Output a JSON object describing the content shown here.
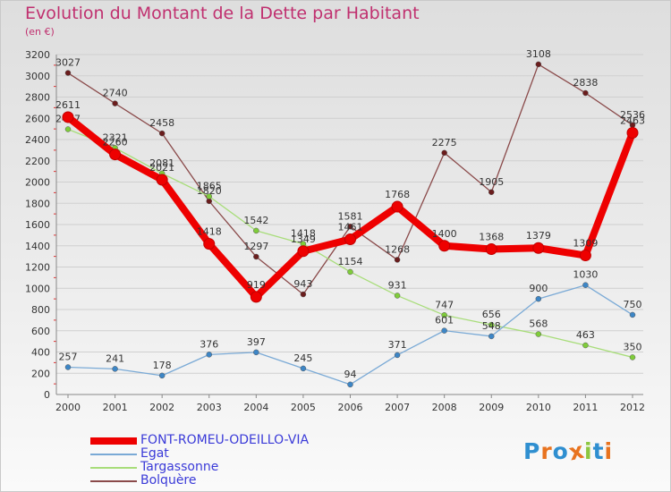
{
  "page": {
    "title": "Evolution du Montant de la Dette par Habitant",
    "subtitle": "(en €)",
    "logo_letters": [
      "P",
      "r",
      "o",
      "x",
      "i",
      "t",
      "i"
    ],
    "logo_colors": [
      "#2f8fd0",
      "#e8731f",
      "#2f8fd0",
      "#e8731f",
      "#8cc63f",
      "#2f8fd0",
      "#e8731f"
    ]
  },
  "chart_data": {
    "type": "line",
    "title": "Evolution du Montant de la Dette par Habitant",
    "subtitle": "(en €)",
    "xlabel": "",
    "ylabel": "",
    "x": [
      "2000",
      "2001",
      "2002",
      "2003",
      "2004",
      "2005",
      "2006",
      "2007",
      "2008",
      "2009",
      "2010",
      "2011",
      "2012"
    ],
    "ylim": [
      0,
      3200
    ],
    "yticks": [
      0,
      200,
      400,
      600,
      800,
      1000,
      1200,
      1400,
      1600,
      1800,
      2000,
      2200,
      2400,
      2600,
      2800,
      3000,
      3200
    ],
    "grid": "horizontal",
    "legend_position": "bottom-left",
    "series": [
      {
        "name": "FONT-ROMEU-ODEILLO-VIA",
        "color": "#ee0000",
        "marker_color": "#ee0000",
        "values": [
          2611,
          2260,
          2021,
          1418,
          919,
          1349,
          1461,
          1768,
          1400,
          1368,
          1379,
          1309,
          2463
        ]
      },
      {
        "name": "Egat",
        "color": "#7aaad6",
        "marker_color": "#3d86c6",
        "values": [
          257,
          241,
          178,
          376,
          397,
          245,
          94,
          371,
          601,
          548,
          900,
          1030,
          750
        ]
      },
      {
        "name": "Targassonne",
        "color": "#a8dd7a",
        "marker_color": "#7fcc3a",
        "values": [
          2497,
          2321,
          2081,
          1865,
          1542,
          1418,
          1154,
          931,
          747,
          656,
          568,
          463,
          350
        ]
      },
      {
        "name": "Bolquère",
        "color": "#8a4a4a",
        "marker_color": "#6b1d1d",
        "values": [
          3027,
          2740,
          2458,
          1820,
          1297,
          943,
          1581,
          1268,
          2275,
          1905,
          3108,
          2838,
          2536
        ]
      }
    ]
  }
}
